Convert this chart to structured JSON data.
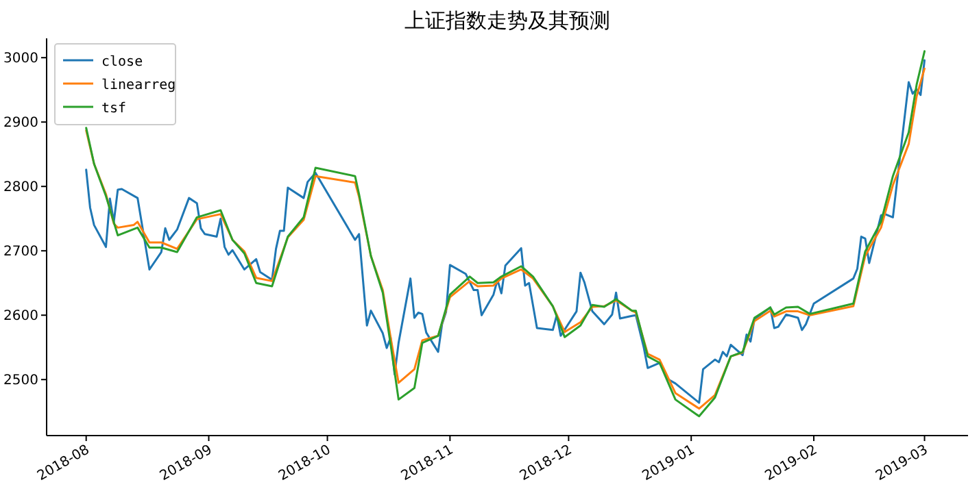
{
  "chart_data": {
    "type": "line",
    "title": "上证指数走势及其预测",
    "xlim": [
      "2018-07-22",
      "2019-03-12"
    ],
    "ylim": [
      2413,
      3030
    ],
    "yticks": [
      2500,
      2600,
      2700,
      2800,
      2900,
      3000
    ],
    "xticks": [
      {
        "value": "2018-08-01",
        "label": "2018-08"
      },
      {
        "value": "2018-09-01",
        "label": "2018-09"
      },
      {
        "value": "2018-10-01",
        "label": "2018-10"
      },
      {
        "value": "2018-11-01",
        "label": "2018-11"
      },
      {
        "value": "2018-12-01",
        "label": "2018-12"
      },
      {
        "value": "2019-01-01",
        "label": "2019-01"
      },
      {
        "value": "2019-02-01",
        "label": "2019-02"
      },
      {
        "value": "2019-03-01",
        "label": "2019-03"
      }
    ],
    "grid": false,
    "legend": "top left",
    "marker": "none",
    "line_style": "solid",
    "series": [
      {
        "name": "close",
        "color": "#1f77b4",
        "x": [
          "2018-08-01",
          "2018-08-02",
          "2018-08-03",
          "2018-08-06",
          "2018-08-07",
          "2018-08-08",
          "2018-08-09",
          "2018-08-10",
          "2018-08-14",
          "2018-08-17",
          "2018-08-20",
          "2018-08-21",
          "2018-08-22",
          "2018-08-24",
          "2018-08-27",
          "2018-08-29",
          "2018-08-30",
          "2018-08-31",
          "2018-09-03",
          "2018-09-04",
          "2018-09-05",
          "2018-09-06",
          "2018-09-07",
          "2018-09-10",
          "2018-09-13",
          "2018-09-14",
          "2018-09-17",
          "2018-09-18",
          "2018-09-19",
          "2018-09-20",
          "2018-09-21",
          "2018-09-25",
          "2018-09-26",
          "2018-09-28",
          "2018-10-08",
          "2018-10-09",
          "2018-10-11",
          "2018-10-12",
          "2018-10-15",
          "2018-10-16",
          "2018-10-17",
          "2018-10-18",
          "2018-10-19",
          "2018-10-22",
          "2018-10-23",
          "2018-10-24",
          "2018-10-25",
          "2018-10-26",
          "2018-10-29",
          "2018-10-30",
          "2018-10-31",
          "2018-11-01",
          "2018-11-05",
          "2018-11-07",
          "2018-11-08",
          "2018-11-09",
          "2018-11-12",
          "2018-11-13",
          "2018-11-14",
          "2018-11-15",
          "2018-11-19",
          "2018-11-20",
          "2018-11-21",
          "2018-11-23",
          "2018-11-27",
          "2018-11-28",
          "2018-11-29",
          "2018-12-03",
          "2018-12-04",
          "2018-12-05",
          "2018-12-07",
          "2018-12-10",
          "2018-12-12",
          "2018-12-13",
          "2018-12-14",
          "2018-12-17",
          "2018-12-18",
          "2018-12-20",
          "2018-12-21",
          "2018-12-24",
          "2018-12-26",
          "2018-12-28",
          "2019-01-03",
          "2019-01-04",
          "2019-01-07",
          "2019-01-08",
          "2019-01-09",
          "2019-01-10",
          "2019-01-11",
          "2019-01-14",
          "2019-01-15",
          "2019-01-16",
          "2019-01-17",
          "2019-01-21",
          "2019-01-22",
          "2019-01-23",
          "2019-01-25",
          "2019-01-28",
          "2019-01-29",
          "2019-01-30",
          "2019-02-01",
          "2019-02-11",
          "2019-02-12",
          "2019-02-13",
          "2019-02-14",
          "2019-02-15",
          "2019-02-18",
          "2019-02-19",
          "2019-02-21",
          "2019-02-25",
          "2019-02-26",
          "2019-02-27",
          "2019-02-28",
          "2019-03-01"
        ],
        "values": [
          2826,
          2767,
          2740,
          2706,
          2781,
          2745,
          2795,
          2796,
          2782,
          2671,
          2698,
          2735,
          2717,
          2733,
          2782,
          2774,
          2735,
          2726,
          2722,
          2750,
          2706,
          2694,
          2701,
          2671,
          2687,
          2667,
          2655,
          2703,
          2731,
          2731,
          2798,
          2782,
          2807,
          2821,
          2717,
          2726,
          2584,
          2607,
          2572,
          2549,
          2565,
          2508,
          2557,
          2657,
          2596,
          2604,
          2602,
          2573,
          2543,
          2586,
          2605,
          2678,
          2664,
          2639,
          2639,
          2600,
          2632,
          2655,
          2634,
          2677,
          2704,
          2646,
          2650,
          2580,
          2577,
          2600,
          2568,
          2606,
          2666,
          2651,
          2606,
          2586,
          2601,
          2635,
          2595,
          2599,
          2600,
          2550,
          2518,
          2526,
          2501,
          2494,
          2464,
          2516,
          2531,
          2527,
          2543,
          2536,
          2554,
          2538,
          2570,
          2559,
          2594,
          2612,
          2580,
          2582,
          2601,
          2596,
          2577,
          2586,
          2618,
          2657,
          2672,
          2722,
          2719,
          2681,
          2755,
          2757,
          2752,
          2962,
          2944,
          2951,
          2942,
          2996
        ]
      },
      {
        "name": "linearreg",
        "color": "#ff7f0e",
        "x": [
          "2018-08-01",
          "2018-08-03",
          "2018-08-06",
          "2018-08-08",
          "2018-08-09",
          "2018-08-13",
          "2018-08-14",
          "2018-08-17",
          "2018-08-20",
          "2018-08-24",
          "2018-08-29",
          "2018-09-04",
          "2018-09-07",
          "2018-09-10",
          "2018-09-13",
          "2018-09-17",
          "2018-09-21",
          "2018-09-25",
          "2018-09-28",
          "2018-10-08",
          "2018-10-09",
          "2018-10-12",
          "2018-10-15",
          "2018-10-17",
          "2018-10-19",
          "2018-10-23",
          "2018-10-25",
          "2018-10-29",
          "2018-11-01",
          "2018-11-06",
          "2018-11-08",
          "2018-11-12",
          "2018-11-14",
          "2018-11-19",
          "2018-11-22",
          "2018-11-27",
          "2018-11-30",
          "2018-12-04",
          "2018-12-07",
          "2018-12-10",
          "2018-12-13",
          "2018-12-17",
          "2018-12-18",
          "2018-12-21",
          "2018-12-24",
          "2018-12-28",
          "2019-01-03",
          "2019-01-07",
          "2019-01-11",
          "2019-01-14",
          "2019-01-17",
          "2019-01-21",
          "2019-01-22",
          "2019-01-25",
          "2019-01-28",
          "2019-01-31",
          "2019-02-11",
          "2019-02-14",
          "2019-02-18",
          "2019-02-21",
          "2019-02-25",
          "2019-02-27",
          "2019-03-01"
        ],
        "values": [
          2887,
          2835,
          2788,
          2742,
          2736,
          2740,
          2745,
          2713,
          2713,
          2703,
          2749,
          2757,
          2717,
          2699,
          2658,
          2653,
          2721,
          2748,
          2816,
          2806,
          2784,
          2692,
          2639,
          2565,
          2495,
          2516,
          2561,
          2568,
          2628,
          2653,
          2645,
          2646,
          2657,
          2671,
          2657,
          2614,
          2574,
          2589,
          2613,
          2614,
          2623,
          2607,
          2604,
          2540,
          2531,
          2479,
          2455,
          2476,
          2536,
          2542,
          2591,
          2607,
          2598,
          2606,
          2606,
          2600,
          2614,
          2692,
          2736,
          2802,
          2866,
          2940,
          2983
        ]
      },
      {
        "name": "tsf",
        "color": "#2ca02c",
        "x": [
          "2018-08-01",
          "2018-08-03",
          "2018-08-06",
          "2018-08-09",
          "2018-08-14",
          "2018-08-17",
          "2018-08-20",
          "2018-08-24",
          "2018-08-29",
          "2018-09-04",
          "2018-09-07",
          "2018-09-10",
          "2018-09-13",
          "2018-09-17",
          "2018-09-21",
          "2018-09-25",
          "2018-09-28",
          "2018-10-08",
          "2018-10-09",
          "2018-10-12",
          "2018-10-15",
          "2018-10-17",
          "2018-10-19",
          "2018-10-23",
          "2018-10-25",
          "2018-10-29",
          "2018-11-01",
          "2018-11-06",
          "2018-11-08",
          "2018-11-12",
          "2018-11-14",
          "2018-11-19",
          "2018-11-22",
          "2018-11-27",
          "2018-11-30",
          "2018-12-04",
          "2018-12-07",
          "2018-12-10",
          "2018-12-13",
          "2018-12-17",
          "2018-12-18",
          "2018-12-21",
          "2018-12-24",
          "2018-12-28",
          "2019-01-03",
          "2019-01-07",
          "2019-01-11",
          "2019-01-14",
          "2019-01-17",
          "2019-01-21",
          "2019-01-22",
          "2019-01-25",
          "2019-01-28",
          "2019-01-31",
          "2019-02-11",
          "2019-02-14",
          "2019-02-18",
          "2019-02-21",
          "2019-02-25",
          "2019-02-27",
          "2019-03-01"
        ],
        "values": [
          2891,
          2835,
          2785,
          2724,
          2736,
          2705,
          2705,
          2698,
          2752,
          2763,
          2717,
          2696,
          2650,
          2645,
          2722,
          2752,
          2829,
          2816,
          2788,
          2692,
          2635,
          2554,
          2469,
          2487,
          2557,
          2568,
          2632,
          2660,
          2650,
          2651,
          2660,
          2676,
          2660,
          2614,
          2566,
          2584,
          2616,
          2613,
          2625,
          2607,
          2607,
          2536,
          2526,
          2469,
          2443,
          2472,
          2536,
          2543,
          2596,
          2612,
          2601,
          2612,
          2613,
          2602,
          2618,
          2699,
          2745,
          2816,
          2884,
          2958,
          3010
        ]
      }
    ]
  }
}
